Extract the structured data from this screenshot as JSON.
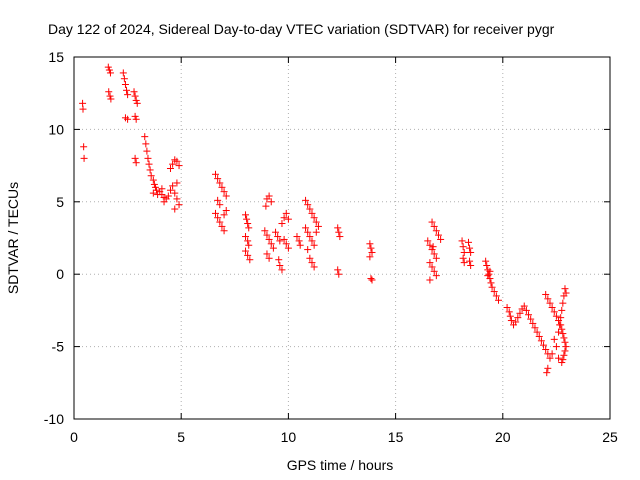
{
  "chart_data": {
    "type": "scatter",
    "title": "Day 122 of 2024, Sidereal Day-to-day VTEC variation (SDTVAR) for receiver pygr",
    "xlabel": "GPS time / hours",
    "ylabel": "SDTVAR / TECUs",
    "xlim": [
      0,
      25
    ],
    "ylim": [
      -10,
      15
    ],
    "xticks": [
      0,
      5,
      10,
      15,
      20,
      25
    ],
    "yticks": [
      -10,
      -5,
      0,
      5,
      10,
      15
    ],
    "xtick_labels": [
      "0",
      "5",
      "10",
      "15",
      "20",
      "25"
    ],
    "ytick_labels": [
      "-10",
      "-5",
      "0",
      "5",
      "10",
      "15"
    ],
    "grid": true,
    "marker": "+",
    "color": "#ff0000",
    "series": [
      {
        "name": "SDTVAR",
        "points": [
          [
            0.4,
            11.8
          ],
          [
            0.42,
            11.4
          ],
          [
            0.45,
            8.8
          ],
          [
            0.47,
            8.0
          ],
          [
            1.6,
            14.3
          ],
          [
            1.65,
            14.1
          ],
          [
            1.7,
            13.9
          ],
          [
            1.62,
            12.6
          ],
          [
            1.68,
            12.3
          ],
          [
            1.72,
            12.1
          ],
          [
            2.3,
            13.9
          ],
          [
            2.35,
            13.5
          ],
          [
            2.4,
            13.1
          ],
          [
            2.45,
            12.7
          ],
          [
            2.5,
            12.4
          ],
          [
            2.4,
            10.8
          ],
          [
            2.5,
            10.7
          ],
          [
            2.8,
            12.6
          ],
          [
            2.85,
            12.3
          ],
          [
            2.9,
            12.0
          ],
          [
            2.95,
            11.8
          ],
          [
            2.85,
            10.9
          ],
          [
            2.9,
            10.7
          ],
          [
            2.85,
            8.0
          ],
          [
            2.9,
            7.7
          ],
          [
            3.3,
            9.5
          ],
          [
            3.35,
            9.0
          ],
          [
            3.4,
            8.5
          ],
          [
            3.45,
            8.0
          ],
          [
            3.5,
            7.6
          ],
          [
            3.55,
            7.2
          ],
          [
            3.6,
            6.8
          ],
          [
            3.7,
            6.5
          ],
          [
            3.75,
            6.2
          ],
          [
            3.8,
            6.0
          ],
          [
            3.85,
            5.8
          ],
          [
            3.7,
            5.6
          ],
          [
            3.9,
            5.5
          ],
          [
            4.0,
            5.7
          ],
          [
            4.1,
            5.5
          ],
          [
            4.2,
            5.3
          ],
          [
            4.3,
            5.2
          ],
          [
            4.1,
            5.9
          ],
          [
            4.2,
            5.0
          ],
          [
            4.4,
            5.4
          ],
          [
            4.5,
            5.8
          ],
          [
            4.6,
            6.1
          ],
          [
            4.7,
            5.6
          ],
          [
            4.8,
            5.2
          ],
          [
            4.9,
            4.8
          ],
          [
            4.7,
            4.5
          ],
          [
            4.8,
            6.3
          ],
          [
            4.5,
            7.3
          ],
          [
            4.6,
            7.6
          ],
          [
            4.7,
            7.9
          ],
          [
            4.8,
            7.8
          ],
          [
            4.9,
            7.5
          ],
          [
            6.6,
            6.9
          ],
          [
            6.7,
            6.6
          ],
          [
            6.8,
            6.3
          ],
          [
            6.9,
            6.0
          ],
          [
            7.0,
            5.7
          ],
          [
            7.1,
            5.4
          ],
          [
            6.7,
            5.1
          ],
          [
            6.8,
            4.8
          ],
          [
            6.6,
            4.2
          ],
          [
            6.7,
            3.9
          ],
          [
            6.8,
            3.6
          ],
          [
            6.9,
            3.3
          ],
          [
            7.0,
            3.0
          ],
          [
            7.1,
            4.4
          ],
          [
            7.0,
            4.1
          ],
          [
            8.0,
            4.1
          ],
          [
            8.05,
            3.8
          ],
          [
            8.1,
            3.5
          ],
          [
            8.15,
            3.2
          ],
          [
            8.0,
            2.6
          ],
          [
            8.1,
            2.3
          ],
          [
            8.15,
            2.0
          ],
          [
            8.0,
            1.6
          ],
          [
            8.1,
            1.3
          ],
          [
            8.2,
            1.0
          ],
          [
            9.0,
            5.2
          ],
          [
            9.1,
            5.4
          ],
          [
            9.2,
            5.0
          ],
          [
            8.95,
            4.7
          ],
          [
            8.9,
            3.0
          ],
          [
            9.0,
            2.7
          ],
          [
            9.1,
            2.4
          ],
          [
            9.2,
            2.1
          ],
          [
            9.3,
            1.8
          ],
          [
            9.0,
            1.4
          ],
          [
            9.1,
            1.1
          ],
          [
            9.4,
            2.9
          ],
          [
            9.5,
            2.6
          ],
          [
            9.6,
            2.3
          ],
          [
            9.55,
            1.0
          ],
          [
            9.6,
            0.6
          ],
          [
            9.7,
            0.3
          ],
          [
            9.7,
            3.5
          ],
          [
            9.8,
            3.9
          ],
          [
            9.9,
            4.2
          ],
          [
            10.0,
            3.8
          ],
          [
            9.8,
            2.4
          ],
          [
            9.9,
            2.1
          ],
          [
            10.0,
            1.8
          ],
          [
            10.4,
            2.6
          ],
          [
            10.5,
            2.3
          ],
          [
            10.55,
            2.0
          ],
          [
            10.8,
            5.1
          ],
          [
            10.9,
            4.8
          ],
          [
            11.0,
            4.5
          ],
          [
            11.1,
            4.2
          ],
          [
            11.2,
            3.9
          ],
          [
            11.3,
            3.6
          ],
          [
            10.8,
            3.2
          ],
          [
            10.9,
            2.9
          ],
          [
            11.0,
            2.6
          ],
          [
            11.1,
            2.3
          ],
          [
            11.2,
            2.0
          ],
          [
            10.9,
            1.7
          ],
          [
            11.0,
            1.1
          ],
          [
            11.1,
            0.8
          ],
          [
            11.2,
            0.5
          ],
          [
            11.3,
            2.9
          ],
          [
            11.4,
            3.3
          ],
          [
            12.3,
            3.2
          ],
          [
            12.35,
            2.9
          ],
          [
            12.4,
            2.6
          ],
          [
            12.3,
            0.3
          ],
          [
            12.35,
            0.0
          ],
          [
            13.8,
            2.1
          ],
          [
            13.85,
            1.8
          ],
          [
            13.9,
            1.5
          ],
          [
            13.8,
            1.2
          ],
          [
            13.85,
            -0.3
          ],
          [
            13.9,
            -0.4
          ],
          [
            16.5,
            2.3
          ],
          [
            16.6,
            2.0
          ],
          [
            16.7,
            1.7
          ],
          [
            16.8,
            1.4
          ],
          [
            16.9,
            1.1
          ],
          [
            16.6,
            0.8
          ],
          [
            16.7,
            0.5
          ],
          [
            16.8,
            0.2
          ],
          [
            16.9,
            -0.1
          ],
          [
            16.6,
            -0.4
          ],
          [
            16.7,
            3.6
          ],
          [
            16.8,
            3.3
          ],
          [
            16.9,
            3.0
          ],
          [
            17.0,
            2.7
          ],
          [
            17.1,
            2.4
          ],
          [
            16.75,
            1.9
          ],
          [
            18.1,
            2.3
          ],
          [
            18.15,
            1.9
          ],
          [
            18.2,
            1.5
          ],
          [
            18.15,
            1.1
          ],
          [
            18.2,
            0.8
          ],
          [
            18.4,
            2.2
          ],
          [
            18.45,
            1.8
          ],
          [
            18.5,
            1.5
          ],
          [
            18.45,
            0.9
          ],
          [
            18.5,
            0.6
          ],
          [
            19.2,
            0.9
          ],
          [
            19.25,
            0.6
          ],
          [
            19.3,
            0.3
          ],
          [
            19.35,
            0.0
          ],
          [
            19.4,
            -0.3
          ],
          [
            19.45,
            -0.6
          ],
          [
            19.5,
            -0.9
          ],
          [
            19.6,
            -1.2
          ],
          [
            19.7,
            -1.5
          ],
          [
            19.8,
            -1.8
          ],
          [
            19.4,
            0.2
          ],
          [
            19.3,
            -0.1
          ],
          [
            20.2,
            -2.3
          ],
          [
            20.3,
            -2.6
          ],
          [
            20.35,
            -2.9
          ],
          [
            20.4,
            -3.2
          ],
          [
            20.5,
            -3.5
          ],
          [
            20.6,
            -3.3
          ],
          [
            20.7,
            -3.0
          ],
          [
            20.8,
            -2.7
          ],
          [
            20.9,
            -2.4
          ],
          [
            21.0,
            -2.2
          ],
          [
            21.1,
            -2.5
          ],
          [
            21.2,
            -2.8
          ],
          [
            21.3,
            -3.1
          ],
          [
            21.4,
            -3.4
          ],
          [
            21.5,
            -3.7
          ],
          [
            21.6,
            -4.0
          ],
          [
            21.7,
            -4.3
          ],
          [
            21.8,
            -4.6
          ],
          [
            21.9,
            -4.9
          ],
          [
            22.0,
            -5.2
          ],
          [
            22.1,
            -5.5
          ],
          [
            22.2,
            -5.8
          ],
          [
            22.05,
            -6.8
          ],
          [
            22.1,
            -6.5
          ],
          [
            22.0,
            -1.4
          ],
          [
            22.1,
            -1.7
          ],
          [
            22.2,
            -2.0
          ],
          [
            22.3,
            -2.3
          ],
          [
            22.4,
            -2.6
          ],
          [
            22.5,
            -2.9
          ],
          [
            22.6,
            -3.2
          ],
          [
            22.7,
            -3.5
          ],
          [
            22.75,
            -3.8
          ],
          [
            22.8,
            -4.1
          ],
          [
            22.85,
            -4.4
          ],
          [
            22.9,
            -4.7
          ],
          [
            22.95,
            -5.0
          ],
          [
            22.9,
            -5.3
          ],
          [
            22.85,
            -5.6
          ],
          [
            22.8,
            -5.9
          ],
          [
            22.75,
            -6.1
          ],
          [
            22.6,
            -4.0
          ],
          [
            22.65,
            -3.5
          ],
          [
            22.7,
            -3.0
          ],
          [
            22.75,
            -2.5
          ],
          [
            22.8,
            -2.0
          ],
          [
            22.85,
            -1.5
          ],
          [
            22.9,
            -1.0
          ],
          [
            22.95,
            -1.3
          ],
          [
            22.4,
            -4.5
          ],
          [
            22.5,
            -5.0
          ],
          [
            22.3,
            -5.5
          ],
          [
            22.6,
            -5.8
          ]
        ]
      }
    ]
  }
}
